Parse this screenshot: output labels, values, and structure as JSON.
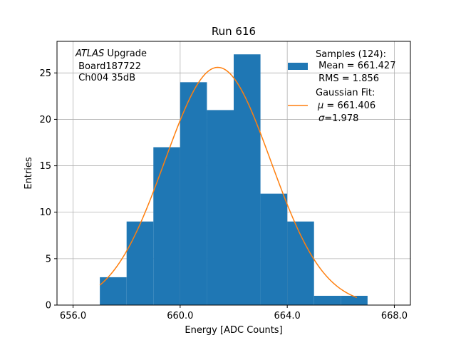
{
  "chart_data": {
    "type": "histogram",
    "title": "Run 616",
    "xlabel": "Energy [ADC Counts]",
    "ylabel": "Entries",
    "xlim": [
      655.4,
      668.6
    ],
    "ylim": [
      0,
      28.4
    ],
    "grid": true,
    "xticks": [
      656.0,
      660.0,
      664.0,
      668.0
    ],
    "xtick_labels": [
      "656.0",
      "660.0",
      "664.0",
      "668.0"
    ],
    "yticks": [
      0,
      5,
      10,
      15,
      20,
      25
    ],
    "ytick_labels": [
      "0",
      "5",
      "10",
      "15",
      "20",
      "25"
    ],
    "bins": [
      {
        "x0": 657.0,
        "x1": 658.0,
        "count": 3
      },
      {
        "x0": 658.0,
        "x1": 659.0,
        "count": 9
      },
      {
        "x0": 659.0,
        "x1": 660.0,
        "count": 17
      },
      {
        "x0": 660.0,
        "x1": 661.0,
        "count": 24
      },
      {
        "x0": 661.0,
        "x1": 662.0,
        "count": 21
      },
      {
        "x0": 662.0,
        "x1": 663.0,
        "count": 27
      },
      {
        "x0": 663.0,
        "x1": 664.0,
        "count": 12
      },
      {
        "x0": 664.0,
        "x1": 665.0,
        "count": 9
      },
      {
        "x0": 665.0,
        "x1": 666.0,
        "count": 1
      },
      {
        "x0": 666.0,
        "x1": 667.0,
        "count": 1
      }
    ],
    "fit": {
      "type": "gaussian",
      "amplitude": 25.6,
      "mu": 661.406,
      "sigma": 1.978,
      "x_range": [
        657.0,
        666.6
      ]
    },
    "colors": {
      "bars": "#1f77b4",
      "fit": "#ff7f0e",
      "grid": "#b0b0b0"
    },
    "annotation": {
      "line1_italic": "ATLAS",
      "line1_rest": " Upgrade",
      "line2": " Board187722",
      "line3": " Ch004 35dB"
    },
    "legend": {
      "position": "top-right",
      "samples_line1": "Samples (124):",
      "samples_line2": " Mean = 661.427",
      "samples_line3": " RMS = 1.856",
      "fit_line1": "Gaussian Fit:",
      "fit_mu_symbol": "μ",
      "fit_mu_value": " = 661.406",
      "fit_sigma_symbol": "σ",
      "fit_sigma_value": "=1.978"
    }
  }
}
